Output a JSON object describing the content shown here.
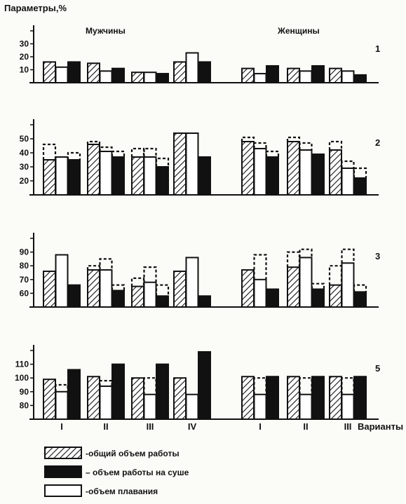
{
  "figure": {
    "ylabel": "Параметры,%",
    "group_headers": [
      "Мужчины",
      "Женщины"
    ],
    "xlabel": "Варианты"
  },
  "legend": [
    {
      "key": "total",
      "label": "-общий объем работы",
      "pattern": "hatched"
    },
    {
      "key": "land",
      "label": "– объем работы на суше",
      "pattern": "solid"
    },
    {
      "key": "swim",
      "label": "-объем плавания",
      "pattern": "outline"
    }
  ],
  "chart_data": [
    {
      "type": "bar",
      "panel_label": "1",
      "categories": [
        "I",
        "II",
        "III",
        "IV",
        "I",
        "II",
        "III"
      ],
      "groups": [
        "Мужчины",
        "Мужчины",
        "Мужчины",
        "Мужчины",
        "Женщины",
        "Женщины",
        "Женщины"
      ],
      "series": [
        {
          "key": "total",
          "values": [
            16,
            15,
            8,
            16,
            11,
            11,
            11
          ]
        },
        {
          "key": "swim",
          "values": [
            12,
            9,
            8,
            23,
            7,
            9,
            9
          ]
        },
        {
          "key": "land",
          "values": [
            16,
            11,
            7,
            16,
            13,
            13,
            6
          ]
        }
      ],
      "dashed": {
        "total": [
          null,
          null,
          null,
          null,
          null,
          null,
          null
        ],
        "swim": [
          null,
          null,
          null,
          null,
          null,
          null,
          null
        ],
        "land": [
          null,
          null,
          null,
          null,
          null,
          null,
          null
        ]
      },
      "yticks": [
        10,
        20,
        30
      ],
      "ylim": [
        0,
        40
      ]
    },
    {
      "type": "bar",
      "panel_label": "2",
      "categories": [
        "I",
        "II",
        "III",
        "IV",
        "I",
        "II",
        "III"
      ],
      "groups": [
        "Мужчины",
        "Мужчины",
        "Мужчины",
        "Мужчины",
        "Женщины",
        "Женщины",
        "Женщины"
      ],
      "series": [
        {
          "key": "total",
          "values": [
            35,
            46,
            37,
            54,
            48,
            48,
            42
          ]
        },
        {
          "key": "swim",
          "values": [
            37,
            41,
            37,
            54,
            43,
            42,
            29
          ]
        },
        {
          "key": "land",
          "values": [
            35,
            37,
            30,
            37,
            37,
            39,
            22
          ]
        }
      ],
      "dashed": {
        "total": [
          46,
          48,
          43,
          null,
          51,
          51,
          48
        ],
        "swim": [
          null,
          44,
          43,
          null,
          47,
          47,
          34
        ],
        "land": [
          40,
          41,
          36,
          null,
          41,
          null,
          29
        ]
      },
      "yticks": [
        20,
        30,
        40,
        50
      ],
      "ylim": [
        10,
        60
      ]
    },
    {
      "type": "bar",
      "panel_label": "3",
      "categories": [
        "I",
        "II",
        "III",
        "IV",
        "I",
        "II",
        "III"
      ],
      "groups": [
        "Мужчины",
        "Мужчины",
        "Мужчины",
        "Мужчины",
        "Женщины",
        "Женщины",
        "Женщины"
      ],
      "series": [
        {
          "key": "total",
          "values": [
            76,
            77,
            65,
            76,
            77,
            79,
            66
          ]
        },
        {
          "key": "swim",
          "values": [
            88,
            77,
            68,
            86,
            70,
            86,
            82
          ]
        },
        {
          "key": "land",
          "values": [
            66,
            62,
            58,
            58,
            63,
            63,
            61
          ]
        }
      ],
      "dashed": {
        "total": [
          null,
          80,
          71,
          null,
          null,
          90,
          80
        ],
        "swim": [
          null,
          85,
          79,
          null,
          88,
          92,
          92
        ],
        "land": [
          null,
          66,
          66,
          null,
          null,
          67,
          66
        ]
      },
      "yticks": [
        60,
        70,
        80,
        90
      ],
      "ylim": [
        50,
        100
      ]
    },
    {
      "type": "bar",
      "panel_label": "5",
      "categories": [
        "I",
        "II",
        "III",
        "IV",
        "I",
        "II",
        "III"
      ],
      "groups": [
        "Мужчины",
        "Мужчины",
        "Мужчины",
        "Мужчины",
        "Женщины",
        "Женщины",
        "Женщины"
      ],
      "series": [
        {
          "key": "total",
          "values": [
            99,
            101,
            100,
            100,
            101,
            101,
            101
          ]
        },
        {
          "key": "swim",
          "values": [
            90,
            94,
            88,
            88,
            88,
            88,
            88
          ]
        },
        {
          "key": "land",
          "values": [
            106,
            110,
            110,
            119,
            101,
            101,
            101
          ]
        }
      ],
      "dashed": {
        "total": [
          null,
          null,
          null,
          null,
          null,
          null,
          null
        ],
        "swim": [
          95,
          98,
          100,
          null,
          100,
          100,
          100
        ],
        "land": [
          null,
          null,
          null,
          null,
          null,
          null,
          null
        ]
      },
      "yticks": [
        80,
        90,
        100,
        110
      ],
      "ylim": [
        70,
        120
      ]
    }
  ]
}
